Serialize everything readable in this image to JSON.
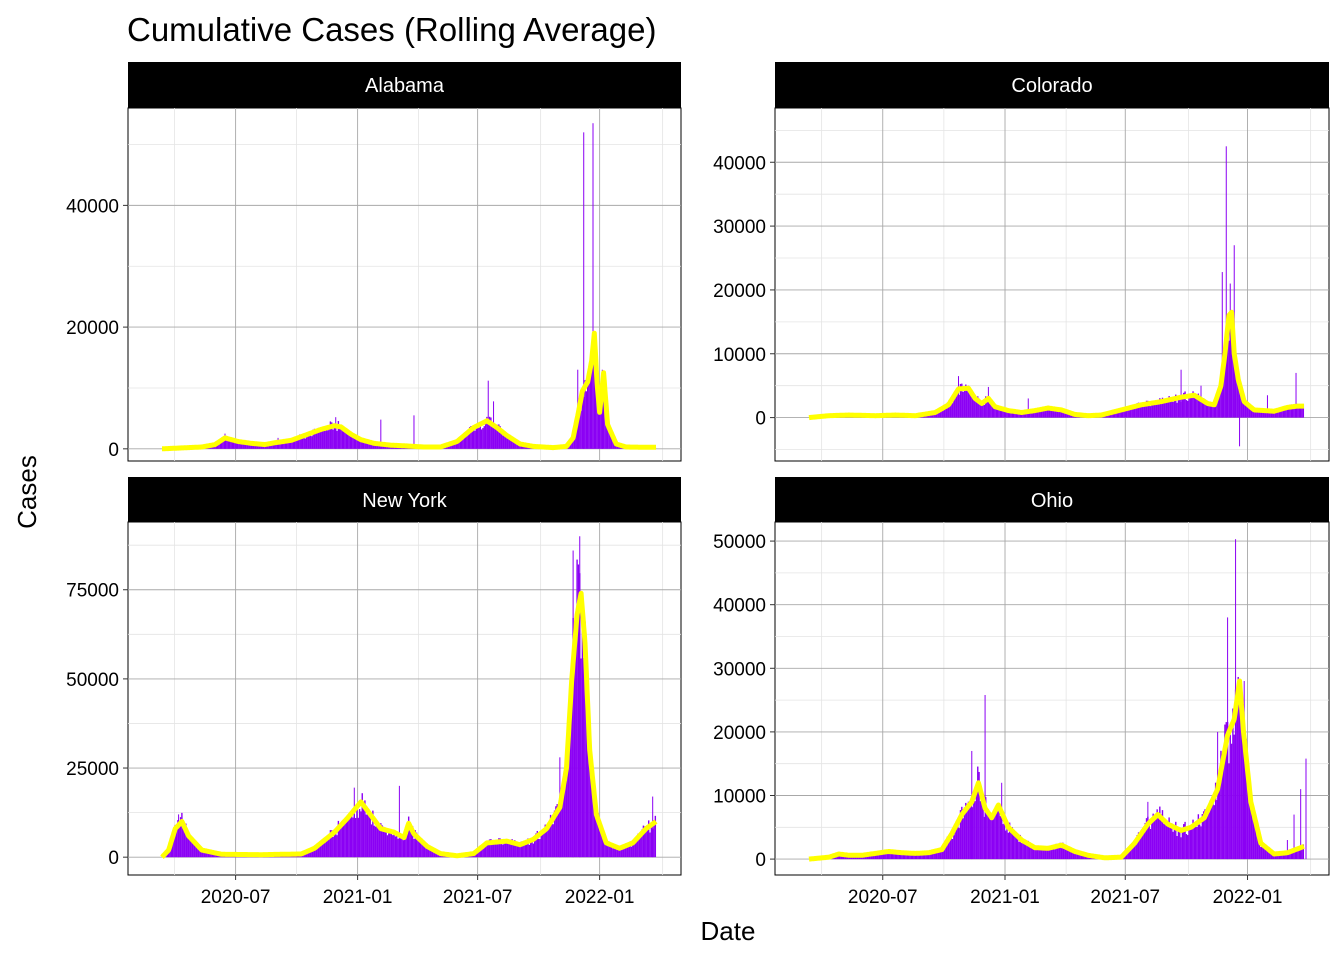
{
  "chart_data": {
    "type": "bar",
    "title": "Cumulative Cases (Rolling Average)",
    "xlabel": "Date",
    "ylabel": "Cases",
    "x_ticks": [
      "2020-07",
      "2021-01",
      "2021-07",
      "2022-01"
    ],
    "bar_color": "#8B00F4",
    "line_color": "#FFFF00",
    "panels": [
      {
        "name": "Alabama",
        "ylim": [
          -2000,
          56000
        ],
        "y_ticks": [
          0,
          20000,
          40000
        ],
        "y_tick_labels": [
          "0",
          "20000",
          "40000"
        ],
        "rolling_average": [
          [
            0,
            0
          ],
          [
            60,
            300
          ],
          [
            80,
            700
          ],
          [
            95,
            1800
          ],
          [
            115,
            1200
          ],
          [
            135,
            900
          ],
          [
            155,
            700
          ],
          [
            170,
            1000
          ],
          [
            195,
            1400
          ],
          [
            215,
            2200
          ],
          [
            240,
            3200
          ],
          [
            260,
            3800
          ],
          [
            270,
            3600
          ],
          [
            285,
            2400
          ],
          [
            300,
            1500
          ],
          [
            320,
            900
          ],
          [
            345,
            600
          ],
          [
            365,
            500
          ],
          [
            395,
            300
          ],
          [
            420,
            300
          ],
          [
            445,
            1200
          ],
          [
            470,
            3500
          ],
          [
            490,
            4600
          ],
          [
            505,
            3500
          ],
          [
            520,
            2200
          ],
          [
            540,
            800
          ],
          [
            560,
            400
          ],
          [
            590,
            200
          ],
          [
            610,
            400
          ],
          [
            620,
            1800
          ],
          [
            628,
            6000
          ],
          [
            634,
            9500
          ],
          [
            642,
            11000
          ],
          [
            648,
            14500
          ],
          [
            652,
            19000
          ],
          [
            656,
            11000
          ],
          [
            660,
            6000
          ],
          [
            666,
            12500
          ],
          [
            672,
            4000
          ],
          [
            685,
            800
          ],
          [
            700,
            300
          ],
          [
            735,
            250
          ]
        ],
        "bar_spikes": [
          [
            95,
            2500
          ],
          [
            175,
            1800
          ],
          [
            262,
            5200
          ],
          [
            330,
            4800
          ],
          [
            380,
            5500
          ],
          [
            492,
            11200
          ],
          [
            500,
            7800
          ],
          [
            627,
            13000
          ],
          [
            636,
            52000
          ],
          [
            650,
            53500
          ],
          [
            664,
            13000
          ]
        ]
      },
      {
        "name": "Colorado",
        "ylim": [
          -6800,
          48500
        ],
        "y_ticks": [
          0,
          10000,
          20000,
          30000,
          40000
        ],
        "y_tick_labels": [
          "0",
          "10000",
          "20000",
          "30000",
          "40000"
        ],
        "rolling_average": [
          [
            0,
            0
          ],
          [
            30,
            300
          ],
          [
            60,
            400
          ],
          [
            100,
            300
          ],
          [
            130,
            400
          ],
          [
            160,
            300
          ],
          [
            190,
            800
          ],
          [
            210,
            2000
          ],
          [
            225,
            4500
          ],
          [
            240,
            4600
          ],
          [
            250,
            3000
          ],
          [
            260,
            2200
          ],
          [
            270,
            3000
          ],
          [
            280,
            1700
          ],
          [
            300,
            1100
          ],
          [
            320,
            800
          ],
          [
            340,
            1100
          ],
          [
            360,
            1500
          ],
          [
            380,
            1200
          ],
          [
            400,
            500
          ],
          [
            420,
            300
          ],
          [
            440,
            400
          ],
          [
            470,
            1200
          ],
          [
            500,
            2000
          ],
          [
            530,
            2500
          ],
          [
            560,
            3200
          ],
          [
            580,
            3500
          ],
          [
            600,
            2200
          ],
          [
            610,
            2000
          ],
          [
            620,
            5000
          ],
          [
            626,
            10000
          ],
          [
            632,
            16000
          ],
          [
            636,
            16500
          ],
          [
            640,
            10000
          ],
          [
            646,
            6000
          ],
          [
            655,
            2500
          ],
          [
            670,
            1200
          ],
          [
            700,
            1000
          ],
          [
            720,
            1600
          ],
          [
            735,
            1800
          ]
        ],
        "bar_spikes": [
          [
            225,
            6500
          ],
          [
            270,
            4800
          ],
          [
            330,
            3000
          ],
          [
            560,
            7500
          ],
          [
            590,
            5000
          ],
          [
            622,
            22800
          ],
          [
            628,
            42500
          ],
          [
            634,
            21000
          ],
          [
            640,
            27000
          ],
          [
            648,
            -4500
          ],
          [
            690,
            3500
          ],
          [
            733,
            7000
          ]
        ]
      },
      {
        "name": "New York",
        "ylim": [
          -5000,
          94000
        ],
        "y_ticks": [
          0,
          25000,
          50000,
          75000
        ],
        "y_tick_labels": [
          "0",
          "25000",
          "50000",
          "75000"
        ],
        "rolling_average": [
          [
            0,
            0
          ],
          [
            10,
            2000
          ],
          [
            20,
            8000
          ],
          [
            30,
            10000
          ],
          [
            40,
            6000
          ],
          [
            60,
            2000
          ],
          [
            90,
            800
          ],
          [
            150,
            700
          ],
          [
            210,
            900
          ],
          [
            230,
            2500
          ],
          [
            260,
            7000
          ],
          [
            280,
            11000
          ],
          [
            300,
            15500
          ],
          [
            310,
            13000
          ],
          [
            330,
            8000
          ],
          [
            350,
            7000
          ],
          [
            365,
            5500
          ],
          [
            372,
            9500
          ],
          [
            380,
            6500
          ],
          [
            400,
            3000
          ],
          [
            420,
            1000
          ],
          [
            445,
            400
          ],
          [
            470,
            1000
          ],
          [
            490,
            4000
          ],
          [
            520,
            4500
          ],
          [
            540,
            3500
          ],
          [
            560,
            5000
          ],
          [
            580,
            8000
          ],
          [
            600,
            14000
          ],
          [
            610,
            25000
          ],
          [
            618,
            50000
          ],
          [
            626,
            68000
          ],
          [
            632,
            74000
          ],
          [
            638,
            60000
          ],
          [
            645,
            30000
          ],
          [
            655,
            12000
          ],
          [
            670,
            4000
          ],
          [
            690,
            2500
          ],
          [
            710,
            4000
          ],
          [
            730,
            8000
          ],
          [
            745,
            10000
          ]
        ],
        "bar_spikes": [
          [
            25,
            12000
          ],
          [
            290,
            19500
          ],
          [
            358,
            20000
          ],
          [
            600,
            28000
          ],
          [
            620,
            86000
          ],
          [
            630,
            90000
          ],
          [
            740,
            17000
          ]
        ]
      },
      {
        "name": "Ohio",
        "ylim": [
          -2500,
          53000
        ],
        "y_ticks": [
          0,
          10000,
          20000,
          30000,
          40000,
          50000
        ],
        "y_tick_labels": [
          "0",
          "10000",
          "20000",
          "30000",
          "40000",
          "50000"
        ],
        "rolling_average": [
          [
            0,
            0
          ],
          [
            30,
            300
          ],
          [
            45,
            800
          ],
          [
            60,
            600
          ],
          [
            80,
            600
          ],
          [
            100,
            900
          ],
          [
            120,
            1200
          ],
          [
            140,
            1000
          ],
          [
            160,
            900
          ],
          [
            180,
            1000
          ],
          [
            200,
            1500
          ],
          [
            215,
            4000
          ],
          [
            230,
            7000
          ],
          [
            245,
            9000
          ],
          [
            255,
            12000
          ],
          [
            265,
            8000
          ],
          [
            275,
            6500
          ],
          [
            285,
            8500
          ],
          [
            300,
            5000
          ],
          [
            320,
            3000
          ],
          [
            340,
            1800
          ],
          [
            360,
            1700
          ],
          [
            380,
            2200
          ],
          [
            400,
            1200
          ],
          [
            420,
            600
          ],
          [
            445,
            200
          ],
          [
            470,
            300
          ],
          [
            490,
            2500
          ],
          [
            510,
            5500
          ],
          [
            525,
            7000
          ],
          [
            540,
            5500
          ],
          [
            560,
            4500
          ],
          [
            575,
            5000
          ],
          [
            595,
            6500
          ],
          [
            615,
            11000
          ],
          [
            630,
            19500
          ],
          [
            640,
            22000
          ],
          [
            648,
            28000
          ],
          [
            654,
            20000
          ],
          [
            665,
            9000
          ],
          [
            680,
            2500
          ],
          [
            700,
            800
          ],
          [
            720,
            1000
          ],
          [
            745,
            2000
          ]
        ],
        "bar_spikes": [
          [
            245,
            17000
          ],
          [
            265,
            25800
          ],
          [
            290,
            12000
          ],
          [
            510,
            9000
          ],
          [
            615,
            20000
          ],
          [
            630,
            38000
          ],
          [
            642,
            50300
          ],
          [
            655,
            28000
          ],
          [
            720,
            3000
          ],
          [
            730,
            7000
          ],
          [
            740,
            11000
          ],
          [
            748,
            15800
          ]
        ]
      }
    ]
  }
}
